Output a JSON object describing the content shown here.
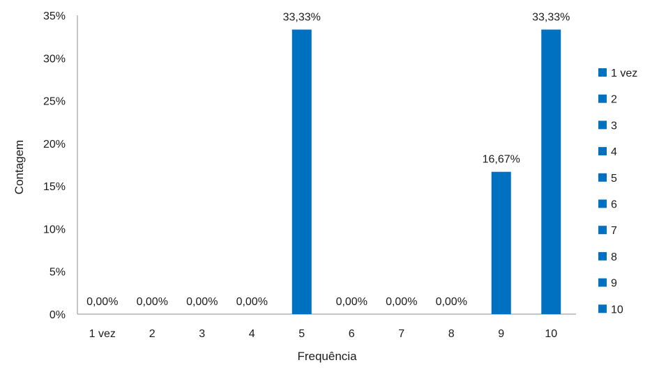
{
  "chart_data": {
    "type": "bar",
    "categories": [
      "1 vez",
      "2",
      "3",
      "4",
      "5",
      "6",
      "7",
      "8",
      "9",
      "10"
    ],
    "values": [
      0,
      0,
      0,
      0,
      33.33,
      0,
      0,
      0,
      16.67,
      33.33
    ],
    "data_labels": [
      "0,00%",
      "0,00%",
      "0,00%",
      "0,00%",
      "33,33%",
      "0,00%",
      "0,00%",
      "0,00%",
      "16,67%",
      "33,33%"
    ],
    "xlabel": "Frequência",
    "ylabel": "Contagem",
    "ylim": [
      0,
      35
    ],
    "yticks": [
      0,
      5,
      10,
      15,
      20,
      25,
      30,
      35
    ],
    "ytick_labels": [
      "0%",
      "5%",
      "10%",
      "15%",
      "20%",
      "25%",
      "30%",
      "35%"
    ],
    "legend": {
      "position": "right",
      "entries": [
        "1 vez",
        "2",
        "3",
        "4",
        "5",
        "6",
        "7",
        "8",
        "9",
        "10"
      ]
    },
    "grid": false,
    "bar_color": "#0070C0"
  }
}
